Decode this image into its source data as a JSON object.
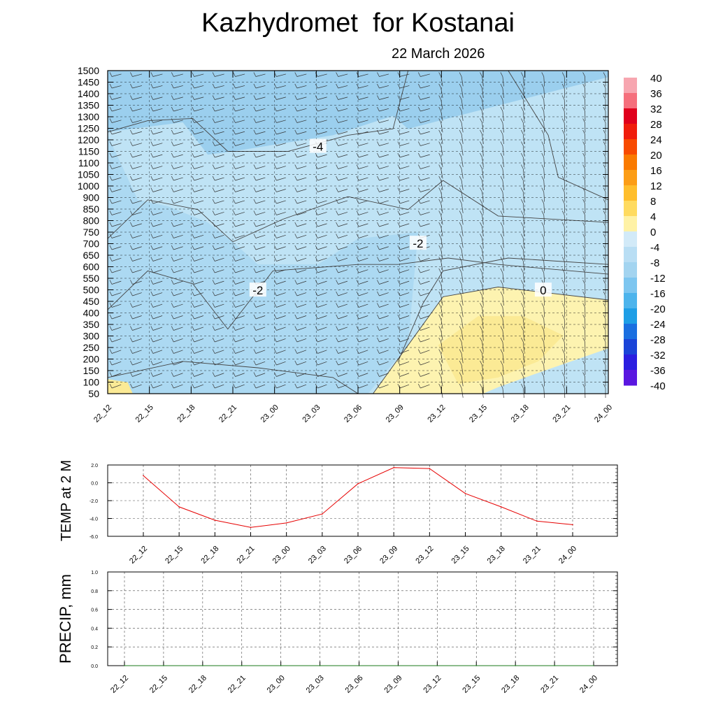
{
  "title": "Kazhydromet  for Kostanai",
  "subtitle": "22 March 2026",
  "chart_data": [
    {
      "type": "heatmap",
      "name": "cross-section",
      "time_labels": [
        "22_12",
        "22_15",
        "22_18",
        "22_21",
        "23_00",
        "23_03",
        "23_06",
        "23_09",
        "23_12",
        "23_15",
        "23_18",
        "23_21",
        "24_00"
      ],
      "y_ticks": [
        50,
        100,
        150,
        200,
        250,
        300,
        350,
        400,
        450,
        500,
        550,
        600,
        650,
        700,
        750,
        800,
        850,
        900,
        1000,
        1050,
        1100,
        1150,
        1200,
        1250,
        1300,
        1350,
        1400,
        1450,
        1500
      ],
      "contour_labels": [
        "-4",
        "-2",
        "-2",
        "0"
      ],
      "colorbar_labels": [
        "40",
        "36",
        "32",
        "28",
        "24",
        "20",
        "16",
        "12",
        "8",
        "4",
        "0",
        "-4",
        "-8",
        "-12",
        "-16",
        "-20",
        "-24",
        "-28",
        "-32",
        "-36",
        "-40"
      ],
      "colorbar_colors": [
        "#f7a6b0",
        "#f56f7c",
        "#e0001c",
        "#f01d0c",
        "#f84a00",
        "#fa7a00",
        "#fc9d16",
        "#ffbe2c",
        "#ffdb60",
        "#fff2a6",
        "#d2eaf8",
        "#b9def4",
        "#a3d4f0",
        "#7dc6f0",
        "#4db4ec",
        "#1e9ee6",
        "#1a6fe0",
        "#1a44d8",
        "#2a1ee0",
        "#5a17e0",
        "#8a2be2"
      ],
      "colors": {
        "cold_dark": "#9bcfee",
        "cold_light": "#bfe3f5",
        "warm_light": "#fdf3b0",
        "warm": "#fbea95"
      }
    },
    {
      "type": "line",
      "name": "temperature",
      "ylabel": "TEMP at 2 M",
      "x": [
        "22_12",
        "22_15",
        "22_18",
        "22_21",
        "23_00",
        "23_03",
        "23_06",
        "23_09",
        "23_12",
        "23_15",
        "23_18",
        "23_21",
        "24_00"
      ],
      "values": [
        0.8,
        -2.7,
        -4.2,
        -5.0,
        -4.5,
        -3.5,
        -0.1,
        1.7,
        1.6,
        -1.2,
        -2.7,
        -4.3,
        -4.7
      ],
      "ylim": [
        -6,
        2
      ],
      "y_ticks": [
        "2.0",
        "0.0",
        "-2.0",
        "-4.0",
        "-6.0"
      ],
      "color": "#e60000"
    },
    {
      "type": "line",
      "name": "precipitation",
      "ylabel": "PRECIP, mm",
      "x": [
        "22_12",
        "22_15",
        "22_18",
        "22_21",
        "23_00",
        "23_03",
        "23_06",
        "23_09",
        "23_12",
        "23_15",
        "23_18",
        "23_21",
        "24_00"
      ],
      "values": [
        0,
        0,
        0,
        0,
        0,
        0,
        0,
        0,
        0,
        0,
        0,
        0,
        0
      ],
      "ylim": [
        0,
        1
      ],
      "y_ticks": [
        "1.0",
        "0.8",
        "0.6",
        "0.4",
        "0.2",
        "0.0"
      ],
      "color": "#1a7a1a"
    }
  ]
}
